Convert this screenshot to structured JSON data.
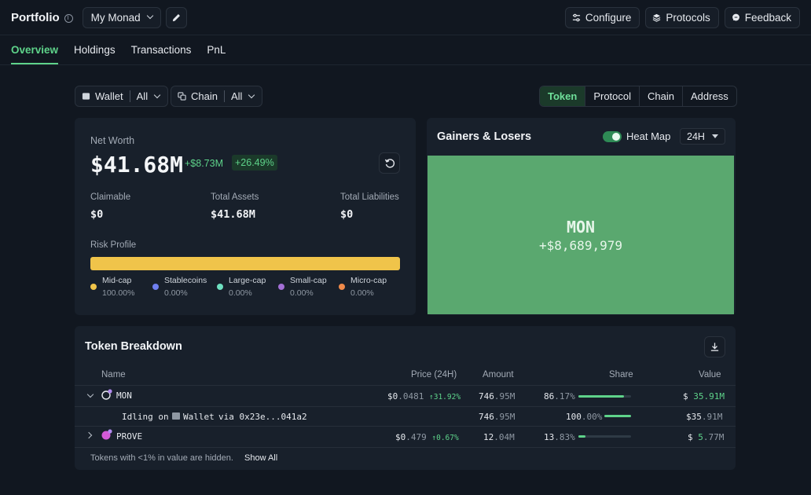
{
  "header": {
    "brand": "Portfolio",
    "portfolio_name": "My Monad",
    "configure_label": "Configure",
    "protocols_label": "Protocols",
    "feedback_label": "Feedback"
  },
  "tabs": [
    "Overview",
    "Holdings",
    "Transactions",
    "PnL"
  ],
  "filters": {
    "wallet_label": "Wallet",
    "wallet_value": "All",
    "chain_label": "Chain",
    "chain_value": "All"
  },
  "view_toggle": [
    "Token",
    "Protocol",
    "Chain",
    "Address"
  ],
  "net_worth": {
    "title": "Net Worth",
    "value": "$41.68M",
    "change": "+$8.73M",
    "change_pct": "+26.49%",
    "claimable_label": "Claimable",
    "claimable_value": "$0",
    "assets_label": "Total Assets",
    "assets_value": "$41.68M",
    "liabilities_label": "Total Liabilities",
    "liabilities_value": "$0",
    "risk_title": "Risk Profile",
    "risk_legend": [
      {
        "name": "Mid-cap",
        "pct": "100.00%",
        "color": "#f0c44a"
      },
      {
        "name": "Stablecoins",
        "pct": "0.00%",
        "color": "#6f7ff0"
      },
      {
        "name": "Large-cap",
        "pct": "0.00%",
        "color": "#6ee0c0"
      },
      {
        "name": "Small-cap",
        "pct": "0.00%",
        "color": "#a36fd6"
      },
      {
        "name": "Micro-cap",
        "pct": "0.00%",
        "color": "#f08a4a"
      }
    ]
  },
  "gainers_losers": {
    "title": "Gainers & Losers",
    "heatmap_label": "Heat Map",
    "period": "24H",
    "tile_symbol": "MON",
    "tile_value": "+$8,689,979"
  },
  "breakdown": {
    "title": "Token Breakdown",
    "columns": [
      "Name",
      "Price (24H)",
      "Amount",
      "Share",
      "Value"
    ],
    "rows": [
      {
        "name": "MON",
        "price_a": "$0",
        "price_b": ".0481",
        "change": "↑31.92%",
        "amt_a": "746",
        "amt_b": ".95M",
        "share_a": "86",
        "share_b": ".17%",
        "share_fill": 0.8617,
        "val_a": "$ ",
        "val_b": "35",
        "val_c": ".91M"
      },
      {
        "name": "Idling on",
        "sub_wallet": "Wallet",
        "sub_via": "via 0x23e...041a2",
        "amt_a": "746",
        "amt_b": ".95M",
        "share_a": "100",
        "share_b": ".00%",
        "share_fill": 1.0,
        "val_a": "$35",
        "val_c": ".91M"
      },
      {
        "name": "PROVE",
        "price_a": "$0",
        "price_b": ".479",
        "change": "↑0.67%",
        "amt_a": "12",
        "amt_b": ".04M",
        "share_a": "13",
        "share_b": ".83%",
        "share_fill": 0.1383,
        "val_a": "$ ",
        "val_b": "5",
        "val_c": ".77M"
      }
    ],
    "footer_note": "Tokens with <1% in value are hidden.",
    "show_all": "Show All"
  }
}
